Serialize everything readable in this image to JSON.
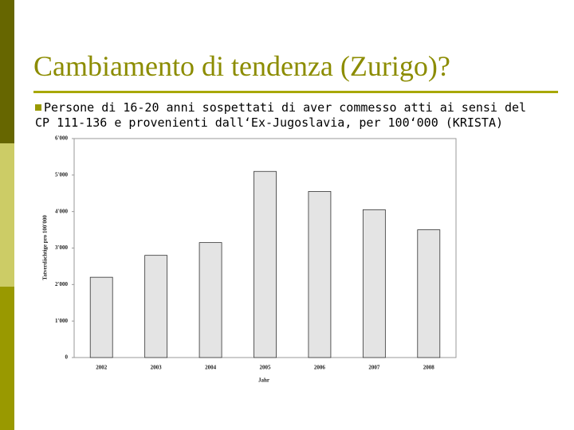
{
  "slide": {
    "title": "Cambiamento di tendenza (Zurigo)?",
    "bullet": "Persone di 16-20 anni sospettati di aver commesso atti ai sensi del CP 111-136 e provenienti dall‘Ex-Jugoslavia, per 100‘000 (KRISTA)"
  },
  "chart_data": {
    "type": "bar",
    "y_label": "Tatverdächtige pro 100'000",
    "x_label": "Jahr",
    "categories": [
      "2002",
      "2003",
      "2004",
      "2005",
      "2006",
      "2007",
      "2008"
    ],
    "values": [
      2200,
      2800,
      3150,
      5100,
      4550,
      4050,
      3500
    ],
    "color": "#e4e4e4",
    "ylim": [
      0,
      6000
    ],
    "yticks": [
      0,
      {
        "value": 1000,
        "label": "1'000"
      },
      {
        "value": 2000,
        "label": "2'000"
      },
      {
        "value": 3000,
        "label": "3'000"
      },
      {
        "value": 4000,
        "label": "4'000"
      },
      {
        "value": 5000,
        "label": "5'000"
      },
      {
        "value": 6000,
        "label": "6'000"
      }
    ],
    "grid": false
  }
}
